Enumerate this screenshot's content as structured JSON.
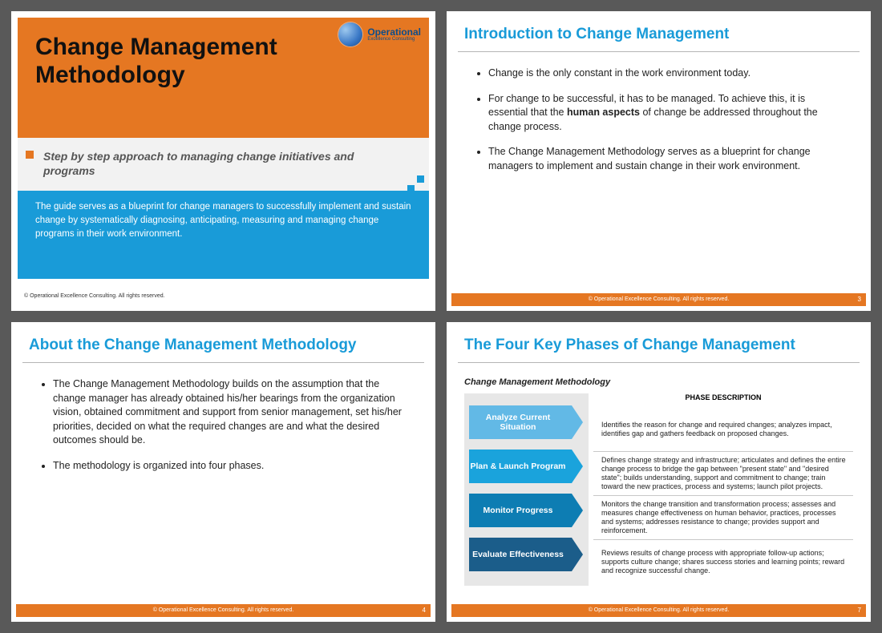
{
  "colors": {
    "orange": "#e57722",
    "blue": "#199bd8",
    "grayBg": "#f2f2f2",
    "pageBg": "#595959"
  },
  "logo": {
    "brand": "Operational",
    "sub": "Excellence Consulting"
  },
  "slide1": {
    "title": "Change Management Methodology",
    "subtitle": "Step by step approach to managing change initiatives and programs",
    "description": "The guide serves as a blueprint for change managers to successfully implement and sustain change by systematically diagnosing, anticipating, measuring and managing change programs in their work environment.",
    "copyright": "© Operational Excellence Consulting. All rights reserved."
  },
  "slide2": {
    "heading": "Introduction to Change Management",
    "bullets": [
      "Change is the only constant in the work environment today.",
      "For change to be successful, it has to be managed.  To achieve this, it is essential that the <b>human aspects</b> of change be addressed throughout the change process.",
      "The Change Management Methodology serves as a blueprint for change managers to implement and sustain change in their work environment."
    ],
    "page": "3",
    "copyright": "© Operational Excellence Consulting. All rights reserved."
  },
  "slide3": {
    "heading": "About the Change Management Methodology",
    "bullets": [
      "The Change Management Methodology builds on the assumption that the change manager has already obtained his/her bearings from the organization vision, obtained commitment and support from senior management, set his/her priorities, decided on what the required changes are and what the desired outcomes should be.",
      "The methodology is organized into four phases."
    ],
    "page": "4",
    "copyright": "© Operational Excellence Consulting. All rights reserved."
  },
  "slide4": {
    "heading": "The Four Key Phases of Change Management",
    "subheading": "Change Management Methodology",
    "descHeader": "PHASE DESCRIPTION",
    "phases": [
      {
        "label": "Analyze Current Situation",
        "color": "#62b9e6",
        "desc": "Identifies the reason for change and required changes; analyzes impact, identifies gap and gathers feedback on proposed changes."
      },
      {
        "label": "Plan & Launch Program",
        "color": "#1aa3dc",
        "desc": "Defines change strategy and infrastructure; articulates and defines the entire change process to bridge the gap between \"present state\" and \"desired state\"; builds understanding, support and commitment to change; train toward the new practices, process and systems; launch pilot projects."
      },
      {
        "label": "Monitor Progress",
        "color": "#0d7db3",
        "desc": "Monitors the change transition and transformation process; assesses and measures change effectiveness on human behavior, practices, processes and systems; addresses resistance to change; provides support and reinforcement."
      },
      {
        "label": "Evaluate Effectiveness",
        "color": "#1b5d8a",
        "desc": "Reviews results of change process with appropriate follow-up actions; supports culture change; shares success stories and learning points; reward and recognize successful change."
      }
    ],
    "page": "7",
    "copyright": "© Operational Excellence Consulting. All rights reserved."
  }
}
